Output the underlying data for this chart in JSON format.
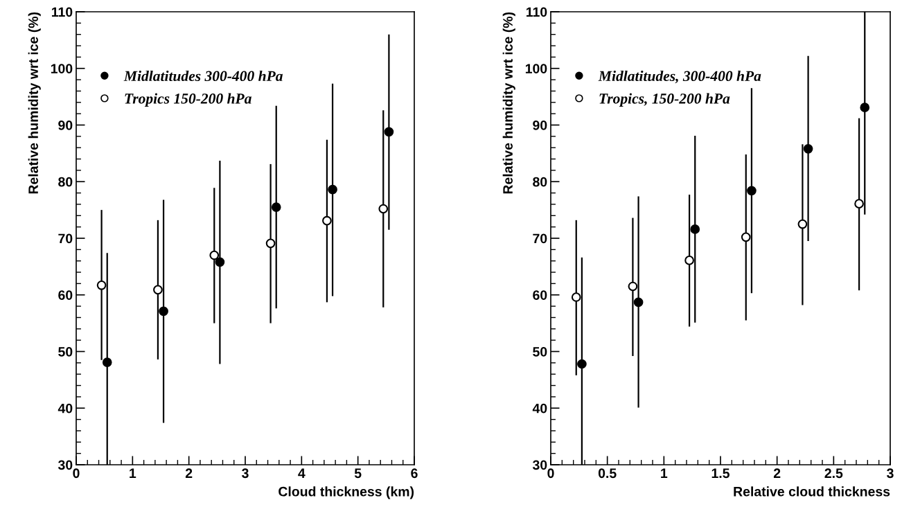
{
  "chart_data": [
    {
      "type": "scatter",
      "xlabel": "Cloud thickness (km)",
      "ylabel": "Relative humidity wrt ice (%)",
      "xlim": [
        0,
        6
      ],
      "xticks": [
        0,
        1,
        2,
        3,
        4,
        5,
        6
      ],
      "ylim": [
        30,
        110
      ],
      "yticks": [
        30,
        40,
        50,
        60,
        70,
        80,
        90,
        100,
        110
      ],
      "marker": "circle",
      "legend": "top left",
      "grid": false,
      "series": [
        {
          "name": "Midlatitudes 300-400 hPa",
          "color": "#000000",
          "x": [
            0.55,
            1.55,
            2.55,
            3.55,
            4.55,
            5.55
          ],
          "values": [
            48.1,
            57.1,
            65.8,
            75.5,
            78.6,
            88.8
          ],
          "errors": [
            [
              30,
              67.4
            ],
            [
              37.4,
              76.8
            ],
            [
              47.8,
              83.7
            ],
            [
              57.6,
              93.4
            ],
            [
              59.8,
              97.3
            ],
            [
              71.5,
              106.0
            ]
          ]
        },
        {
          "name": "Tropics 150-200 hPa",
          "color": "#ffffff",
          "x": [
            0.45,
            1.45,
            2.45,
            3.45,
            4.45,
            5.45
          ],
          "values": [
            61.7,
            60.9,
            67.0,
            69.1,
            73.1,
            75.2
          ],
          "errors": [
            [
              48.5,
              75.0
            ],
            [
              48.6,
              73.2
            ],
            [
              55.0,
              78.9
            ],
            [
              55.0,
              83.1
            ],
            [
              58.7,
              87.4
            ],
            [
              57.8,
              92.6
            ]
          ]
        }
      ]
    },
    {
      "type": "scatter",
      "xlabel": "Relative cloud thickness",
      "ylabel": "Relative humidity wrt ice (%)",
      "xlim": [
        0,
        3
      ],
      "xticks": [
        0,
        0.5,
        1,
        1.5,
        2,
        2.5,
        3
      ],
      "ylim": [
        30,
        110
      ],
      "yticks": [
        30,
        40,
        50,
        60,
        70,
        80,
        90,
        100,
        110
      ],
      "marker": "circle",
      "legend": "top left",
      "grid": false,
      "series": [
        {
          "name": "Midlatitudes, 300-400 hPa",
          "color": "#000000",
          "x": [
            0.275,
            0.775,
            1.275,
            1.775,
            2.275,
            2.775
          ],
          "values": [
            47.8,
            58.7,
            71.6,
            78.4,
            85.8,
            93.1
          ],
          "errors": [
            [
              30,
              66.6
            ],
            [
              40.1,
              77.4
            ],
            [
              55.1,
              88.1
            ],
            [
              60.3,
              96.5
            ],
            [
              69.5,
              102.2
            ],
            [
              74.2,
              110
            ]
          ]
        },
        {
          "name": "Tropics, 150-200 hPa",
          "color": "#ffffff",
          "x": [
            0.225,
            0.725,
            1.225,
            1.725,
            2.225,
            2.725
          ],
          "values": [
            59.6,
            61.5,
            66.1,
            70.2,
            72.5,
            76.1
          ],
          "errors": [
            [
              45.8,
              73.2
            ],
            [
              49.2,
              73.6
            ],
            [
              54.4,
              77.7
            ],
            [
              55.5,
              84.8
            ],
            [
              58.2,
              86.6
            ],
            [
              60.8,
              91.2
            ]
          ]
        }
      ]
    }
  ]
}
